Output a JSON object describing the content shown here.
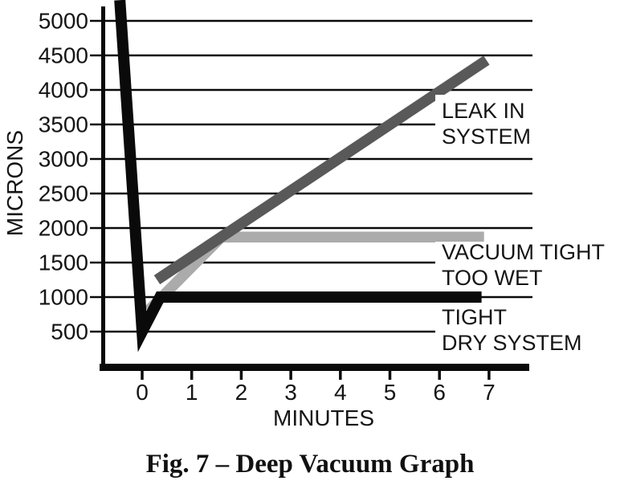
{
  "figure": {
    "caption": "Fig. 7 – Deep Vacuum Graph"
  },
  "chart_data": {
    "type": "line",
    "title": "Deep Vacuum Graph",
    "xlabel": "MINUTES",
    "ylabel": "MICRONS",
    "xlim": [
      -1.05,
      7.8
    ],
    "ylim": [
      0,
      5300
    ],
    "x_ticks": [
      0,
      1,
      2,
      3,
      4,
      5,
      6,
      7
    ],
    "y_ticks": [
      500,
      1000,
      1500,
      2000,
      2500,
      3000,
      3500,
      4000,
      4500,
      5000
    ],
    "grid": "horizontal",
    "legend_position": "inline-labels",
    "colors": {
      "black": "#0a0a0a",
      "dark_gray": "#595959",
      "light_gray": "#ababab",
      "grid": "#0a0a0a",
      "background": "#ffffff"
    },
    "series": [
      {
        "name": "vacuum-tight-too-wet",
        "label": "VACUUM TIGHT TOO WET",
        "label_lines": [
          "VACUUM TIGHT",
          "TOO WET"
        ],
        "color": "#ababab",
        "width": 13.5,
        "points": [
          [
            0.12,
            800
          ],
          [
            1.6,
            1870
          ],
          [
            6.9,
            1870
          ]
        ],
        "label_pos": [
          550,
          302
        ],
        "label_box": [
          542,
          301,
          232,
          59
        ]
      },
      {
        "name": "leak-in-system",
        "label": "LEAK IN SYSTEM",
        "label_lines": [
          "LEAK IN",
          "SYSTEM"
        ],
        "color": "#595959",
        "width": 13.5,
        "points": [
          [
            0.3,
            1250
          ],
          [
            6.95,
            4430
          ]
        ],
        "label_pos": [
          550,
          126
        ],
        "label_box": [
          542,
          118,
          148,
          77
        ]
      },
      {
        "name": "tight-dry-system",
        "label": "TIGHT DRY SYSTEM",
        "label_lines": [
          "TIGHT",
          "DRY SYSTEM"
        ],
        "color": "#0a0a0a",
        "width": 14,
        "points": [
          [
            -0.45,
            5300
          ],
          [
            0,
            500
          ],
          [
            0.36,
            1000
          ],
          [
            6.85,
            1000
          ]
        ],
        "label_pos": [
          550,
          383
        ],
        "label_box": [
          542,
          381,
          208,
          58
        ]
      }
    ]
  }
}
